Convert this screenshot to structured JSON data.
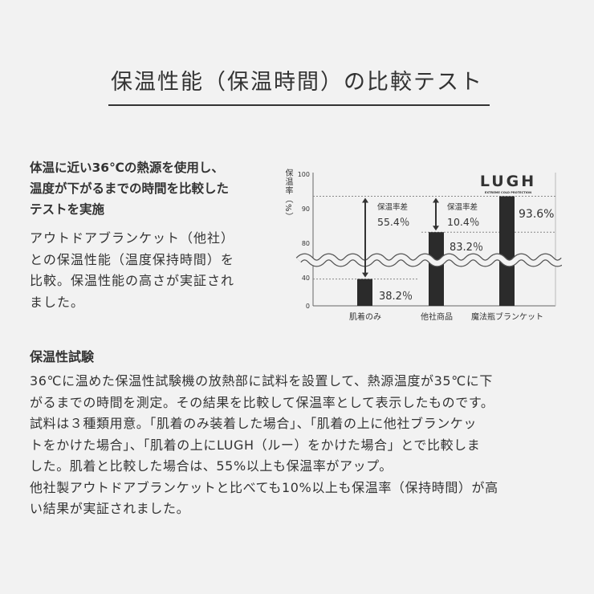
{
  "title": "保温性能（保温時間）の比較テスト",
  "lead_lines": [
    "体温に近い36℃の熱源を使用し、",
    "温度が下がるまでの時間を比較した",
    "テストを実施"
  ],
  "lead_body_lines": [
    "アウトドアブランケット（他社）",
    "との保温性能（温度保持時間）を",
    "比較。保温性能の高さが実証され",
    "ました。"
  ],
  "section_title": "保温性試験",
  "paragraph_lines": [
    "36℃に温めた保温性試験機の放熱部に試料を設置して、熱源温度が35℃に下",
    "がるまでの時間を測定。その結果を比較して保温率として表示したものです。",
    "試料は３種類用意。「肌着のみ装着した場合」、「肌着の上に他社ブランケッ",
    "トをかけた場合」、「肌着の上にLUGH（ルー）をかけた場合」とで比較しま",
    "した。肌着と比較した場合は、55%以上も保温率がアップ。",
    "他社製アウトドアブランケットと比べても10%以上も保温率（保持時間）が高",
    "い結果が実証されました。"
  ],
  "chart_data": {
    "type": "bar",
    "ylabel": "保温率（%）",
    "y_ticks": [
      "100",
      "90",
      "80",
      "40",
      "0"
    ],
    "ylim": [
      0,
      100
    ],
    "axis_break": [
      40,
      80
    ],
    "categories": [
      "肌着のみ",
      "他社商品",
      "魔法瓶ブランケット"
    ],
    "values": [
      38.2,
      83.2,
      93.6
    ],
    "value_labels": [
      "38.2％",
      "83.2％",
      "93.6%"
    ],
    "annotations": [
      {
        "label": "保温率差",
        "value": "55.4％",
        "from": 38.2,
        "to": 93.6
      },
      {
        "label": "保温率差",
        "value": "10.4％",
        "from": 83.2,
        "to": 93.6
      }
    ],
    "logo": "LUGH",
    "logo_tagline": "EXTREME COLD PROTECTION",
    "bar_color": "#2b2b2b"
  }
}
